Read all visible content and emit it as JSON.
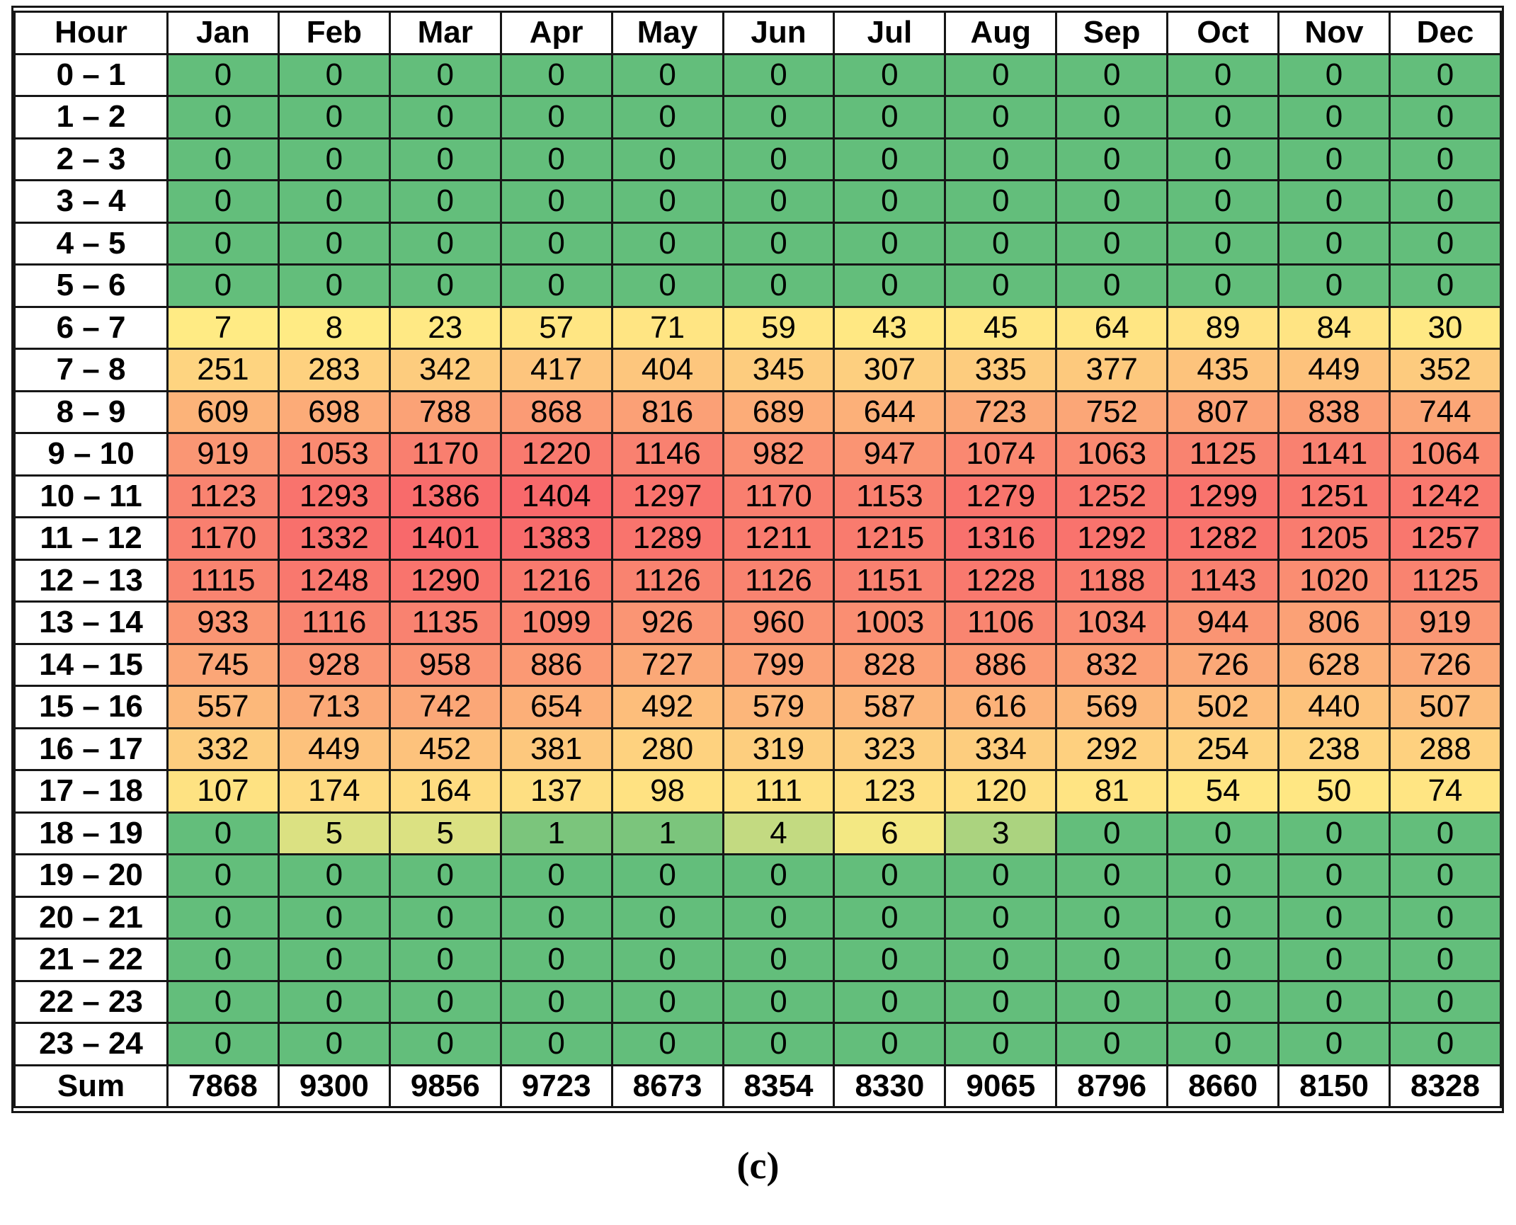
{
  "caption": "(c)",
  "chart_data": {
    "type": "heatmap",
    "title": "",
    "row_label_header": "Hour",
    "columns": [
      "Jan",
      "Feb",
      "Mar",
      "Apr",
      "May",
      "Jun",
      "Jul",
      "Aug",
      "Sep",
      "Oct",
      "Nov",
      "Dec"
    ],
    "rows": [
      "0 – 1",
      "1 – 2",
      "2 – 3",
      "3 – 4",
      "4 – 5",
      "5 – 6",
      "6 – 7",
      "7 – 8",
      "8 – 9",
      "9 – 10",
      "10 – 11",
      "11 – 12",
      "12 – 13",
      "13 – 14",
      "14 – 15",
      "15 – 16",
      "16 – 17",
      "17 – 18",
      "18 – 19",
      "19 – 20",
      "20 – 21",
      "21 – 22",
      "22 – 23",
      "23 – 24"
    ],
    "values": [
      [
        0,
        0,
        0,
        0,
        0,
        0,
        0,
        0,
        0,
        0,
        0,
        0
      ],
      [
        0,
        0,
        0,
        0,
        0,
        0,
        0,
        0,
        0,
        0,
        0,
        0
      ],
      [
        0,
        0,
        0,
        0,
        0,
        0,
        0,
        0,
        0,
        0,
        0,
        0
      ],
      [
        0,
        0,
        0,
        0,
        0,
        0,
        0,
        0,
        0,
        0,
        0,
        0
      ],
      [
        0,
        0,
        0,
        0,
        0,
        0,
        0,
        0,
        0,
        0,
        0,
        0
      ],
      [
        0,
        0,
        0,
        0,
        0,
        0,
        0,
        0,
        0,
        0,
        0,
        0
      ],
      [
        7,
        8,
        23,
        57,
        71,
        59,
        43,
        45,
        64,
        89,
        84,
        30
      ],
      [
        251,
        283,
        342,
        417,
        404,
        345,
        307,
        335,
        377,
        435,
        449,
        352
      ],
      [
        609,
        698,
        788,
        868,
        816,
        689,
        644,
        723,
        752,
        807,
        838,
        744
      ],
      [
        919,
        1053,
        1170,
        1220,
        1146,
        982,
        947,
        1074,
        1063,
        1125,
        1141,
        1064
      ],
      [
        1123,
        1293,
        1386,
        1404,
        1297,
        1170,
        1153,
        1279,
        1252,
        1299,
        1251,
        1242
      ],
      [
        1170,
        1332,
        1401,
        1383,
        1289,
        1211,
        1215,
        1316,
        1292,
        1282,
        1205,
        1257
      ],
      [
        1115,
        1248,
        1290,
        1216,
        1126,
        1126,
        1151,
        1228,
        1188,
        1143,
        1020,
        1125
      ],
      [
        933,
        1116,
        1135,
        1099,
        926,
        960,
        1003,
        1106,
        1034,
        944,
        806,
        919
      ],
      [
        745,
        928,
        958,
        886,
        727,
        799,
        828,
        886,
        832,
        726,
        628,
        726
      ],
      [
        557,
        713,
        742,
        654,
        492,
        579,
        587,
        616,
        569,
        502,
        440,
        507
      ],
      [
        332,
        449,
        452,
        381,
        280,
        319,
        323,
        334,
        292,
        254,
        238,
        288
      ],
      [
        107,
        174,
        164,
        137,
        98,
        111,
        123,
        120,
        81,
        54,
        50,
        74
      ],
      [
        0,
        5,
        5,
        1,
        1,
        4,
        6,
        3,
        0,
        0,
        0,
        0
      ],
      [
        0,
        0,
        0,
        0,
        0,
        0,
        0,
        0,
        0,
        0,
        0,
        0
      ],
      [
        0,
        0,
        0,
        0,
        0,
        0,
        0,
        0,
        0,
        0,
        0,
        0
      ],
      [
        0,
        0,
        0,
        0,
        0,
        0,
        0,
        0,
        0,
        0,
        0,
        0
      ],
      [
        0,
        0,
        0,
        0,
        0,
        0,
        0,
        0,
        0,
        0,
        0,
        0
      ],
      [
        0,
        0,
        0,
        0,
        0,
        0,
        0,
        0,
        0,
        0,
        0,
        0
      ]
    ],
    "sum_row_label": "Sum",
    "sums": [
      7868,
      9300,
      9856,
      9723,
      8673,
      8354,
      8330,
      9065,
      8796,
      8660,
      8150,
      8328
    ],
    "color_scale": {
      "type": "3-color",
      "min_value": 0,
      "mid_value": 6.5,
      "max_value": 1404,
      "min_color": "#63BE7B",
      "mid_color": "#FFEB84",
      "max_color": "#F8696B",
      "note": "green=low, yellow=50th percentile, red=high"
    },
    "legend_position": "none",
    "grid": true
  }
}
